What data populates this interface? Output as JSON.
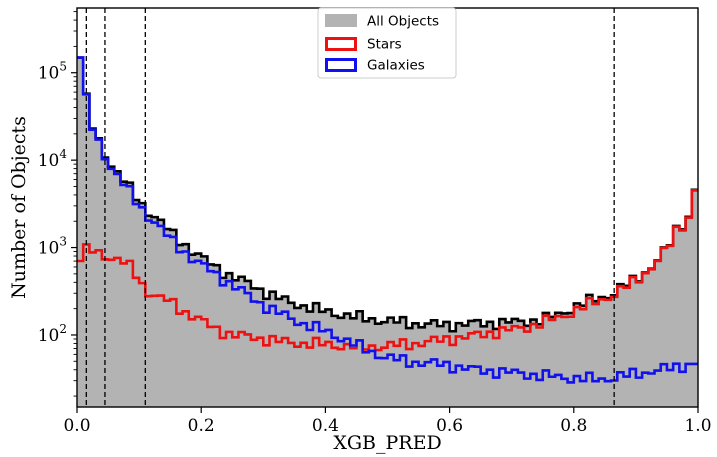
{
  "chart_data": {
    "type": "histogram",
    "xlabel": "XGB_PRED",
    "ylabel": "Number of Objects",
    "xlim": [
      0.0,
      1.0
    ],
    "ylim": [
      15,
      550000
    ],
    "yscale": "log",
    "x_ticks": [
      {
        "value": 0.0,
        "label": "0.0"
      },
      {
        "value": 0.2,
        "label": "0.2"
      },
      {
        "value": 0.4,
        "label": "0.4"
      },
      {
        "value": 0.6,
        "label": "0.6"
      },
      {
        "value": 0.8,
        "label": "0.8"
      },
      {
        "value": 1.0,
        "label": "1.0"
      }
    ],
    "y_ticks": [
      {
        "value": 100,
        "base": "10",
        "exp": "2"
      },
      {
        "value": 1000,
        "base": "10",
        "exp": "3"
      },
      {
        "value": 10000,
        "base": "10",
        "exp": "4"
      },
      {
        "value": 100000,
        "base": "10",
        "exp": "5"
      }
    ],
    "vlines": [
      0.015,
      0.045,
      0.11,
      0.865
    ],
    "legend_position": "top-center",
    "series": [
      {
        "name": "All Objects",
        "style": "filled",
        "color": "#b3b3b3",
        "edge_color": "#000000",
        "points": [
          [
            0.0,
            330000
          ],
          [
            0.01,
            80000
          ],
          [
            0.02,
            30000
          ],
          [
            0.03,
            19000
          ],
          [
            0.04,
            14000
          ],
          [
            0.05,
            10000
          ],
          [
            0.07,
            6500
          ],
          [
            0.09,
            4200
          ],
          [
            0.11,
            2800
          ],
          [
            0.13,
            2100
          ],
          [
            0.15,
            1500
          ],
          [
            0.17,
            1150
          ],
          [
            0.19,
            850
          ],
          [
            0.22,
            620
          ],
          [
            0.25,
            460
          ],
          [
            0.28,
            380
          ],
          [
            0.31,
            290
          ],
          [
            0.34,
            240
          ],
          [
            0.37,
            210
          ],
          [
            0.4,
            185
          ],
          [
            0.43,
            170
          ],
          [
            0.46,
            155
          ],
          [
            0.5,
            145
          ],
          [
            0.53,
            138
          ],
          [
            0.56,
            132
          ],
          [
            0.6,
            130
          ],
          [
            0.64,
            135
          ],
          [
            0.68,
            138
          ],
          [
            0.72,
            142
          ],
          [
            0.75,
            150
          ],
          [
            0.78,
            175
          ],
          [
            0.8,
            210
          ],
          [
            0.83,
            250
          ],
          [
            0.86,
            290
          ],
          [
            0.88,
            360
          ],
          [
            0.9,
            430
          ],
          [
            0.92,
            560
          ],
          [
            0.94,
            780
          ],
          [
            0.96,
            1250
          ],
          [
            0.97,
            2100
          ],
          [
            0.98,
            1700
          ],
          [
            0.99,
            2900
          ],
          [
            1.0,
            7500
          ]
        ]
      },
      {
        "name": "Stars",
        "style": "step",
        "color": "#ee1111",
        "points": [
          [
            0.0,
            650
          ],
          [
            0.01,
            900
          ],
          [
            0.02,
            950
          ],
          [
            0.03,
            880
          ],
          [
            0.04,
            830
          ],
          [
            0.05,
            790
          ],
          [
            0.07,
            720
          ],
          [
            0.09,
            560
          ],
          [
            0.11,
            330
          ],
          [
            0.13,
            270
          ],
          [
            0.15,
            240
          ],
          [
            0.17,
            190
          ],
          [
            0.19,
            160
          ],
          [
            0.22,
            120
          ],
          [
            0.25,
            100
          ],
          [
            0.28,
            95
          ],
          [
            0.31,
            88
          ],
          [
            0.34,
            82
          ],
          [
            0.37,
            80
          ],
          [
            0.4,
            78
          ],
          [
            0.43,
            75
          ],
          [
            0.46,
            73
          ],
          [
            0.5,
            75
          ],
          [
            0.53,
            78
          ],
          [
            0.56,
            82
          ],
          [
            0.6,
            90
          ],
          [
            0.64,
            98
          ],
          [
            0.68,
            110
          ],
          [
            0.72,
            120
          ],
          [
            0.75,
            140
          ],
          [
            0.78,
            160
          ],
          [
            0.8,
            190
          ],
          [
            0.83,
            230
          ],
          [
            0.86,
            280
          ],
          [
            0.88,
            340
          ],
          [
            0.9,
            420
          ],
          [
            0.92,
            550
          ],
          [
            0.94,
            770
          ],
          [
            0.96,
            1230
          ],
          [
            0.97,
            2050
          ],
          [
            0.98,
            1650
          ],
          [
            0.99,
            2850
          ],
          [
            1.0,
            7400
          ]
        ]
      },
      {
        "name": "Galaxies",
        "style": "step",
        "color": "#1111ee",
        "points": [
          [
            0.0,
            330000
          ],
          [
            0.01,
            80000
          ],
          [
            0.02,
            29000
          ],
          [
            0.03,
            18500
          ],
          [
            0.04,
            13500
          ],
          [
            0.05,
            9500
          ],
          [
            0.07,
            6000
          ],
          [
            0.09,
            3800
          ],
          [
            0.11,
            2500
          ],
          [
            0.13,
            1800
          ],
          [
            0.15,
            1250
          ],
          [
            0.17,
            950
          ],
          [
            0.19,
            700
          ],
          [
            0.22,
            520
          ],
          [
            0.25,
            370
          ],
          [
            0.28,
            270
          ],
          [
            0.31,
            200
          ],
          [
            0.34,
            160
          ],
          [
            0.37,
            130
          ],
          [
            0.4,
            110
          ],
          [
            0.43,
            90
          ],
          [
            0.46,
            70
          ],
          [
            0.5,
            55
          ],
          [
            0.53,
            50
          ],
          [
            0.56,
            48
          ],
          [
            0.6,
            45
          ],
          [
            0.64,
            40
          ],
          [
            0.68,
            38
          ],
          [
            0.72,
            36
          ],
          [
            0.75,
            34
          ],
          [
            0.78,
            33
          ],
          [
            0.8,
            32
          ],
          [
            0.83,
            31
          ],
          [
            0.86,
            32
          ],
          [
            0.88,
            34
          ],
          [
            0.9,
            36
          ],
          [
            0.92,
            38
          ],
          [
            0.94,
            40
          ],
          [
            0.96,
            42
          ],
          [
            0.97,
            44
          ],
          [
            0.98,
            45
          ],
          [
            0.99,
            47
          ],
          [
            1.0,
            48
          ]
        ]
      }
    ]
  }
}
